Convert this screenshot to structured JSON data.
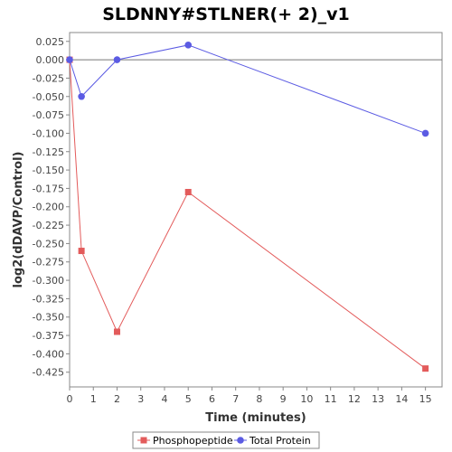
{
  "chart_data": {
    "type": "line",
    "title": "SLDNNY#STLNER(+ 2)_v1",
    "xlabel": "Time (minutes)",
    "ylabel": "log2(dDAVP/Control)",
    "xlim": [
      0,
      15.7
    ],
    "ylim": [
      -0.445,
      0.037
    ],
    "x_ticks": [
      0,
      1,
      2,
      3,
      4,
      5,
      6,
      7,
      8,
      9,
      10,
      11,
      12,
      13,
      14,
      15
    ],
    "y_ticks": [
      0.025,
      0.0,
      -0.025,
      -0.05,
      -0.075,
      -0.1,
      -0.125,
      -0.15,
      -0.175,
      -0.2,
      -0.225,
      -0.25,
      -0.275,
      -0.3,
      -0.325,
      -0.35,
      -0.375,
      -0.4,
      -0.425
    ],
    "y_tick_labels": [
      "0.025",
      "0.000",
      "-0.025",
      "-0.050",
      "-0.075",
      "-0.100",
      "-0.125",
      "-0.150",
      "-0.175",
      "-0.200",
      "-0.225",
      "-0.250",
      "-0.275",
      "-0.300",
      "-0.325",
      "-0.350",
      "-0.375",
      "-0.400",
      "-0.425"
    ],
    "zero_line": true,
    "grid": false,
    "legend_position": "bottom",
    "series": [
      {
        "name": "Phosphopeptide",
        "color": "#e35b5b",
        "marker": "square",
        "x": [
          0,
          0.5,
          2,
          5,
          15
        ],
        "y": [
          0.0,
          -0.26,
          -0.37,
          -0.18,
          -0.42
        ]
      },
      {
        "name": "Total Protein",
        "color": "#5b5be3",
        "marker": "circle",
        "x": [
          0,
          0.5,
          2,
          5,
          15
        ],
        "y": [
          0.0,
          -0.05,
          0.0,
          0.02,
          -0.1
        ]
      }
    ]
  }
}
